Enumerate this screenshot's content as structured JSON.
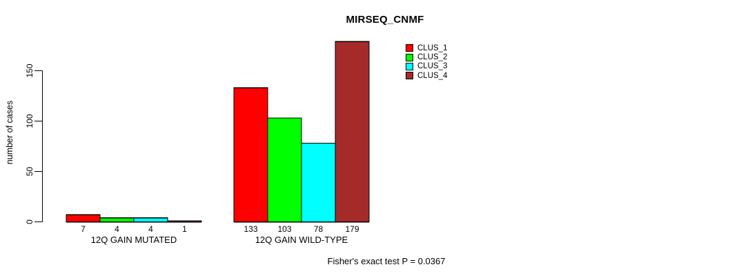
{
  "chart_data": {
    "type": "bar",
    "title": "MIRSEQ_CNMF",
    "ylabel": "number of cases",
    "xlabel": "",
    "annotation": "Fisher's exact test P = 0.0367",
    "categories": [
      "12Q GAIN MUTATED",
      "12Q GAIN WILD-TYPE"
    ],
    "series": [
      {
        "name": "CLUS_1",
        "color": "#ff0000",
        "values": [
          7,
          133
        ]
      },
      {
        "name": "CLUS_2",
        "color": "#00ff00",
        "values": [
          4,
          103
        ]
      },
      {
        "name": "CLUS_3",
        "color": "#00ffff",
        "values": [
          4,
          78
        ]
      },
      {
        "name": "CLUS_4",
        "color": "#a52a2a",
        "values": [
          1,
          179
        ]
      }
    ],
    "yticks": [
      0,
      50,
      100,
      150
    ],
    "ylim": [
      0,
      179
    ],
    "grid": false,
    "legend_position": "top-right",
    "axis_color": "#000000",
    "bar_border_color": "#000000"
  }
}
